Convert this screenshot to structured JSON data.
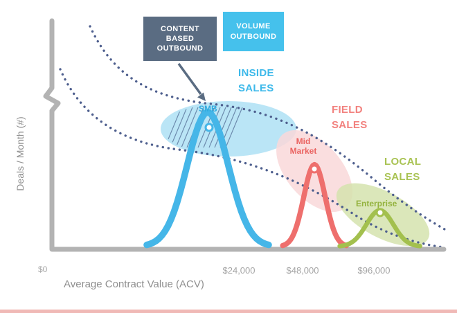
{
  "chart_data": {
    "type": "line",
    "title": "",
    "xlabel": "Average Contract Value (ACV)",
    "ylabel": "Deals / Month (#)",
    "x_tick_labels": [
      "$0",
      "$24,000",
      "$48,000",
      "$96,000"
    ],
    "x_tick_values": [
      0,
      24000,
      48000,
      96000
    ],
    "y_axis_note": "unlabeled axis with break mark near top",
    "series": [
      {
        "name": "SMB",
        "sales_model": "INSIDE SALES",
        "outbound_model": "VOLUME OUTBOUND",
        "center_acv": 20000,
        "relative_peak": 1.0,
        "color": "#45b6e8"
      },
      {
        "name": "Mid Market",
        "sales_model": "FIELD SALES",
        "center_acv": 56000,
        "relative_peak": 0.61,
        "color": "#ee6f6d"
      },
      {
        "name": "Enterprise",
        "sales_model": "LOCAL SALES",
        "center_acv": 100000,
        "relative_peak": 0.27,
        "color": "#a3c04e"
      }
    ],
    "guide_curves": "two dotted declining curves from upper-left to lower-right"
  },
  "boxes": {
    "content_based_outbound": "CONTENT\nBASED\nOUTBOUND",
    "volume_outbound": "VOLUME\nOUTBOUND"
  },
  "labels": {
    "inside_sales": "INSIDE\nSALES",
    "field_sales": "FIELD\nSALES",
    "local_sales": "LOCAL\nSALES",
    "smb": "SMB",
    "mid_market": "Mid\nMarket",
    "enterprise": "Enterprise"
  },
  "axes": {
    "x_title": "Average Contract Value (ACV)",
    "y_title": "Deals / Month (#)",
    "tick_0": "$0",
    "tick_24k": "$24,000",
    "tick_48k": "$48,000",
    "tick_96k": "$96,000"
  },
  "colors": {
    "inside_sales_text": "#3db9ea",
    "field_sales_text": "#f2817e",
    "local_sales_text": "#a9c353",
    "smb_text": "#2fabdf",
    "mid_market_text": "#ea6361",
    "enterprise_text": "#93b23d",
    "smb_highlight": "#aee0f5",
    "field_highlight": "#f9d8d9",
    "local_highlight": "#d5e3ae",
    "content_box_bg": "#5a6c82",
    "volume_box_bg": "#45c1ec",
    "dotted_line": "#4e5f8e",
    "axis_gray": "#b3b3b3",
    "tick_text": "#a5a5a5",
    "axis_title_text": "#8f8f8f",
    "bottom_bar": "#f0b9b6",
    "hatch": "#5a759c"
  }
}
